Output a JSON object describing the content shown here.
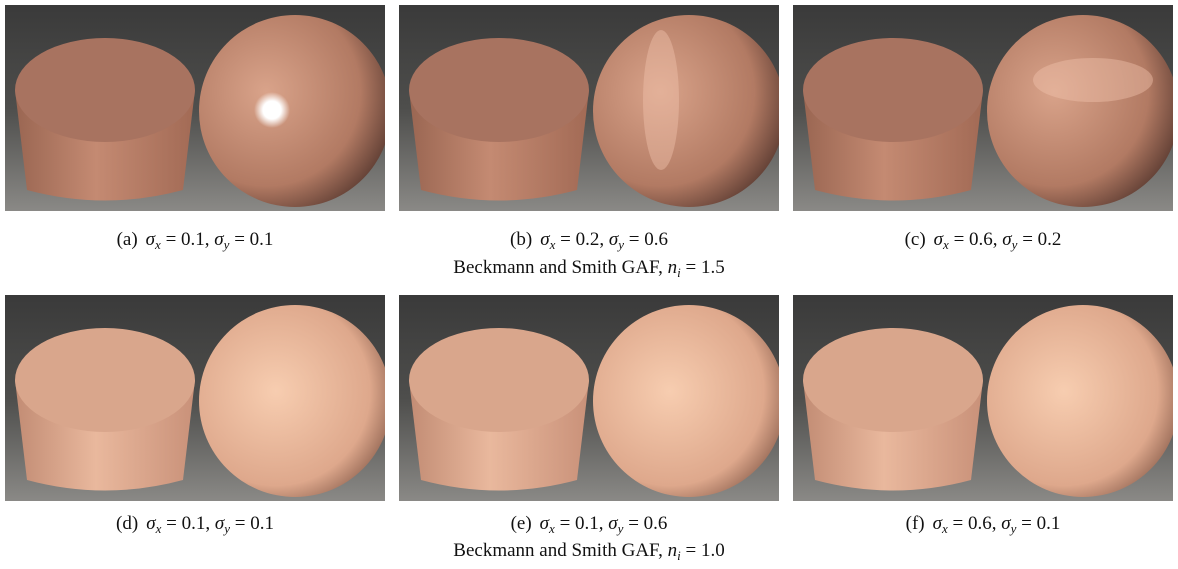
{
  "rows": [
    {
      "panels": [
        {
          "label": "(a)",
          "terms": [
            {
              "var": "σ",
              "sub": "x",
              "eq": "= 0.1,"
            },
            {
              "var": "σ",
              "sub": "y",
              "eq": "= 0.1"
            }
          ]
        },
        {
          "label": "(b)",
          "terms": [
            {
              "var": "σ",
              "sub": "x",
              "eq": "= 0.2,"
            },
            {
              "var": "σ",
              "sub": "y",
              "eq": "= 0.6"
            }
          ]
        },
        {
          "label": "(c)",
          "terms": [
            {
              "var": "σ",
              "sub": "x",
              "eq": "= 0.6,"
            },
            {
              "var": "σ",
              "sub": "y",
              "eq": "= 0.2"
            }
          ]
        }
      ],
      "title": {
        "text": "Beckmann and Smith GAF,",
        "var": "n",
        "sub": "i",
        "eq": "= 1.5"
      }
    },
    {
      "panels": [
        {
          "label": "(d)",
          "terms": [
            {
              "var": "σ",
              "sub": "x",
              "eq": "= 0.1,"
            },
            {
              "var": "σ",
              "sub": "y",
              "eq": "= 0.1"
            }
          ]
        },
        {
          "label": "(e)",
          "terms": [
            {
              "var": "σ",
              "sub": "x",
              "eq": "= 0.1,"
            },
            {
              "var": "σ",
              "sub": "y",
              "eq": "= 0.6"
            }
          ]
        },
        {
          "label": "(f)",
          "terms": [
            {
              "var": "σ",
              "sub": "x",
              "eq": "= 0.6,"
            },
            {
              "var": "σ",
              "sub": "y",
              "eq": "= 0.1"
            }
          ]
        }
      ],
      "title": {
        "text": "Beckmann and Smith GAF,",
        "var": "n",
        "sub": "i",
        "eq": "= 1.0"
      }
    }
  ]
}
